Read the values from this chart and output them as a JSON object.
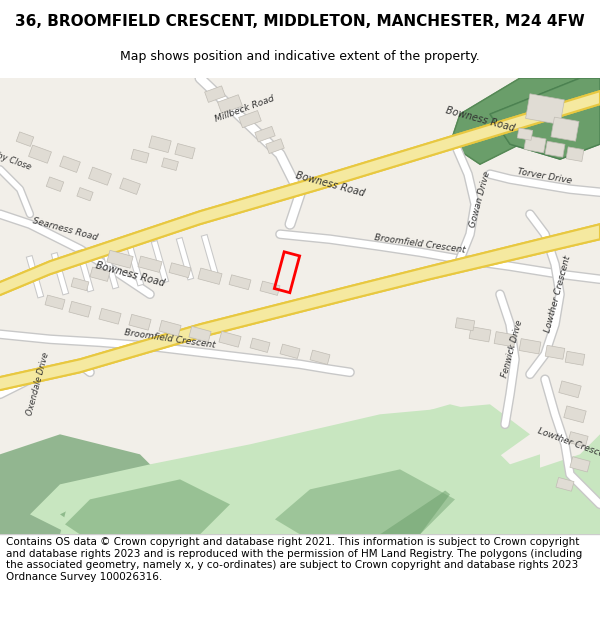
{
  "title": "36, BROOMFIELD CRESCENT, MIDDLETON, MANCHESTER, M24 4FW",
  "subtitle": "Map shows position and indicative extent of the property.",
  "footer": "Contains OS data © Crown copyright and database right 2021. This information is subject to Crown copyright and database rights 2023 and is reproduced with the permission of HM Land Registry. The polygons (including the associated geometry, namely x, y co-ordinates) are subject to Crown copyright and database rights 2023 Ordnance Survey 100026316.",
  "bg_color": "#f2efe9",
  "road_color": "#ffffff",
  "road_stroke": "#c8c8c8",
  "major_road_fill": "#f5e9a0",
  "major_road_stroke": "#e8c840",
  "green_dark": "#6a9e6a",
  "green_light": "#c8e6c0",
  "building_color": "#e0dcd4",
  "building_stroke": "#c0bcb4",
  "highlight_color": "#ff0000",
  "footer_bg": "#ffffff",
  "title_fontsize": 11,
  "subtitle_fontsize": 9,
  "footer_fontsize": 7.5
}
